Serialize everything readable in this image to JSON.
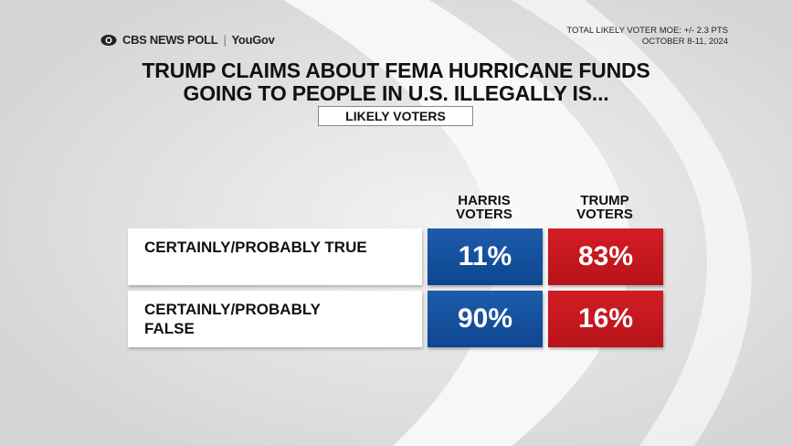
{
  "header": {
    "brand": "CBS NEWS POLL",
    "partner": "YouGov",
    "moe": "TOTAL LIKELY VOTER MOE: +/- 2.3 PTS",
    "date": "OCTOBER 8-11, 2024"
  },
  "title": [
    "TRUMP CLAIMS ABOUT  FEMA HURRICANE FUNDS",
    "GOING TO PEOPLE IN U.S. ILLEGALLY IS..."
  ],
  "subtitle": "LIKELY VOTERS",
  "table": {
    "columns": [
      "HARRIS VOTERS",
      "TRUMP VOTERS"
    ],
    "rows": [
      [
        "CERTAINLY/PROBABLY TRUE",
        "11%",
        "83%"
      ],
      [
        "CERTAINLY/PROBABLY FALSE",
        "90%",
        "16%"
      ]
    ]
  }
}
